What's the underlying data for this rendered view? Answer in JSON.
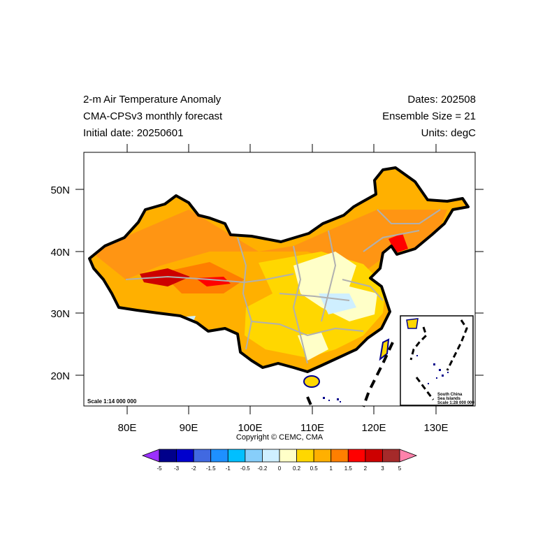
{
  "header": {
    "title": "2-m Air Temperature Anomaly",
    "subtitle": "CMA-CPSv3 monthly forecast",
    "initial": "Initial date: 20250601",
    "dates": "Dates: 202508",
    "ensemble": "Ensemble Size = 21",
    "units": "Units: degC"
  },
  "axes": {
    "lat_labels": [
      "50N",
      "40N",
      "30N",
      "20N"
    ],
    "lon_labels": [
      "80E",
      "90E",
      "100E",
      "110E",
      "120E",
      "130E"
    ]
  },
  "map": {
    "scale_note": "Scale 1:14 000 000",
    "inset_lines": [
      "South China",
      "Sea Islands",
      "Scale 1:28 000 000"
    ]
  },
  "copyright": "Copyright © CEMC, CMA",
  "colorbar": {
    "labels": [
      "-5",
      "-3",
      "-2",
      "-1.5",
      "-1",
      "-0.5",
      "-0.2",
      "0",
      "0.2",
      "0.5",
      "1",
      "1.5",
      "2",
      "3",
      "5"
    ],
    "colors": [
      "#9b30ff",
      "#00008b",
      "#0000cd",
      "#4169e1",
      "#1e90ff",
      "#00bfff",
      "#87cefa",
      "#cfefff",
      "#ffffc8",
      "#ffd700",
      "#ffb000",
      "#ff7f00",
      "#ff0000",
      "#cd0000",
      "#a52a2a",
      "#ff82ab"
    ]
  }
}
